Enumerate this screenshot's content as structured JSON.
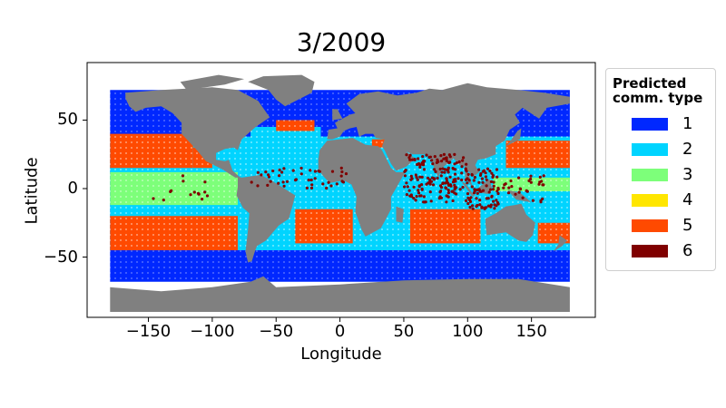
{
  "chart_data": {
    "type": "scatter",
    "title": "3/2009",
    "xlabel": "Longitude",
    "ylabel": "Latitude",
    "xlim": [
      -198,
      200
    ],
    "ylim": [
      -94,
      92
    ],
    "xticks": [
      "−150",
      "−100",
      "−50",
      "0",
      "50",
      "100",
      "150"
    ],
    "xtick_values": [
      -150,
      -100,
      -50,
      0,
      50,
      100,
      150
    ],
    "yticks": [
      "50",
      "0",
      "−50"
    ],
    "ytick_values": [
      50,
      0,
      -50
    ],
    "grid": false,
    "legend": {
      "title": "Predicted\ncomm. type",
      "placement": "outside-right",
      "entries": [
        {
          "label": "1",
          "color": "#0028ff"
        },
        {
          "label": "2",
          "color": "#00d4ff"
        },
        {
          "label": "3",
          "color": "#7dff7a"
        },
        {
          "label": "4",
          "color": "#ffe600"
        },
        {
          "label": "5",
          "color": "#ff4a00"
        },
        {
          "label": "6",
          "color": "#800000"
        }
      ]
    },
    "land_color": "#808080"
  }
}
